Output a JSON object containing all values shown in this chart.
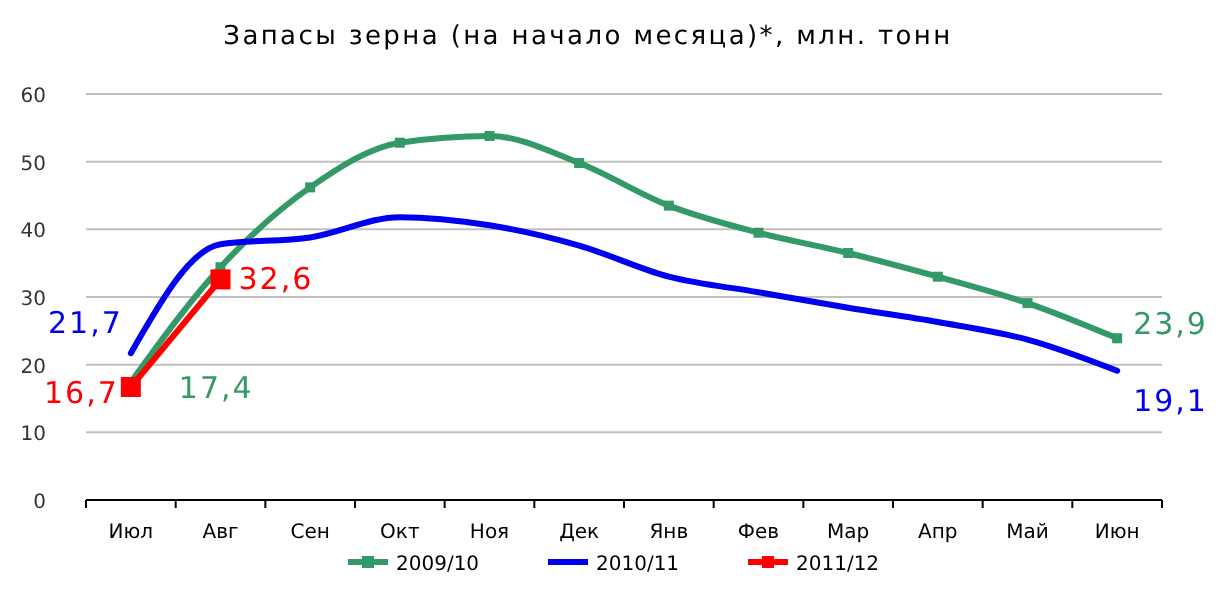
{
  "chart_data": {
    "type": "line",
    "title": "Запасы зерна (на начало месяца)*, млн. тонн",
    "categories": [
      "Июл",
      "Авг",
      "Сен",
      "Окт",
      "Ноя",
      "Дек",
      "Янв",
      "Фев",
      "Мар",
      "Апр",
      "Май",
      "Июн"
    ],
    "series": [
      {
        "name": "2009/10",
        "color": "#339966",
        "marker": "square",
        "values": [
          17.4,
          34.4,
          46.2,
          52.8,
          53.8,
          49.8,
          43.5,
          39.5,
          36.5,
          33.0,
          29.1,
          23.9
        ],
        "value_labels": [
          "17,4",
          null,
          null,
          null,
          null,
          null,
          null,
          null,
          null,
          null,
          null,
          "23,9"
        ]
      },
      {
        "name": "2010/11",
        "color": "#0000ee",
        "marker": "none",
        "values": [
          21.7,
          37.8,
          38.8,
          41.8,
          40.6,
          37.6,
          33.0,
          30.7,
          28.4,
          26.3,
          23.7,
          19.1
        ],
        "value_labels": [
          "21,7",
          null,
          null,
          null,
          null,
          null,
          null,
          null,
          null,
          null,
          null,
          "19,1"
        ]
      },
      {
        "name": "2011/12",
        "color": "#ff0000",
        "marker": "square",
        "values": [
          16.7,
          32.6,
          null,
          null,
          null,
          null,
          null,
          null,
          null,
          null,
          null,
          null
        ],
        "value_labels": [
          "16,7",
          "32,6",
          null,
          null,
          null,
          null,
          null,
          null,
          null,
          null,
          null,
          null
        ]
      }
    ],
    "ylim": [
      0,
      60
    ],
    "yticks": [
      0,
      10,
      20,
      30,
      40,
      50,
      60
    ],
    "grid": "y",
    "legend": "bottom"
  }
}
